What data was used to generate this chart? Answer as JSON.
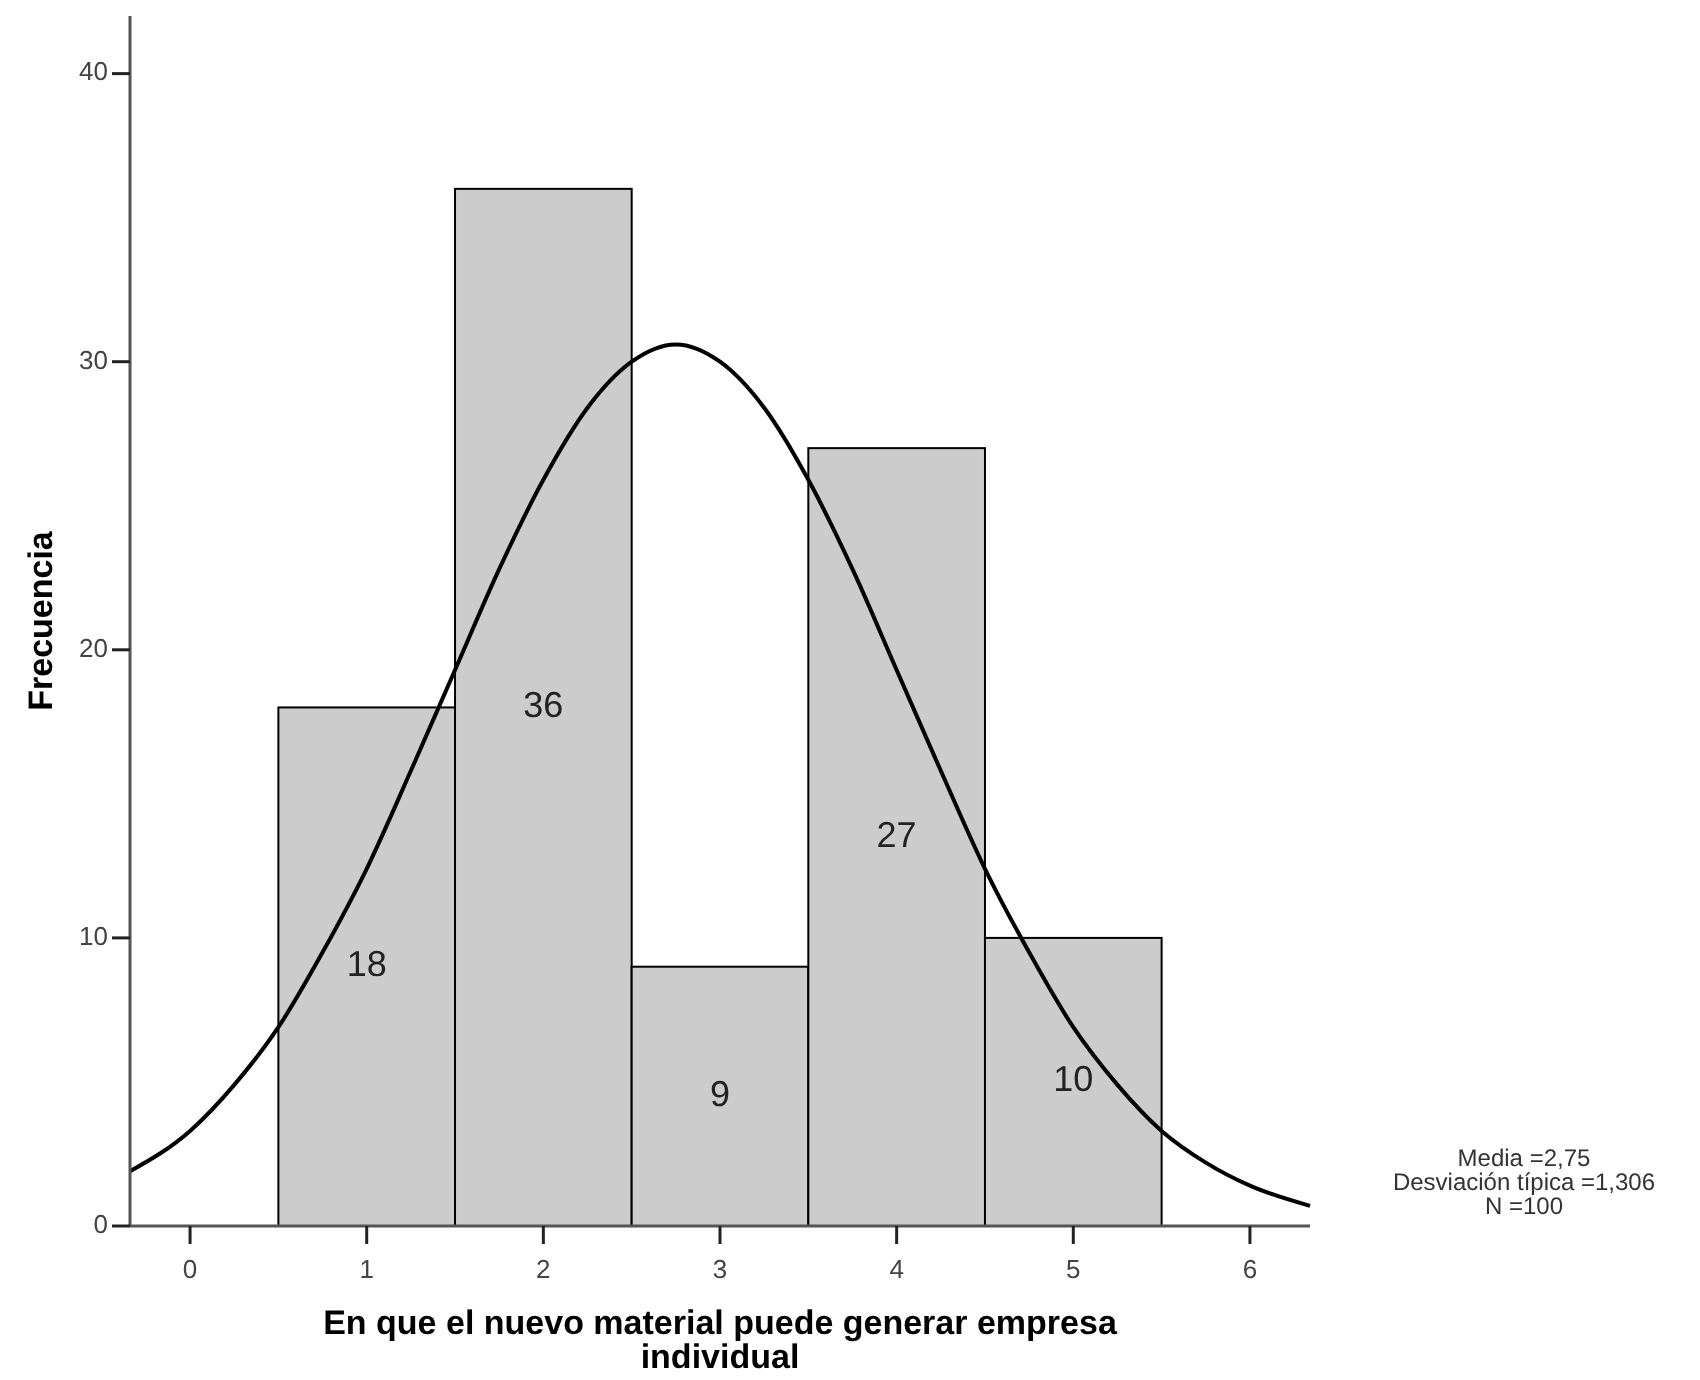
{
  "chart_data": {
    "type": "histogram",
    "xlabel": "En que el nuevo material puede generar empresa individual",
    "ylabel": "Frecuencia",
    "bins": [
      0.5,
      1.5,
      2.5,
      3.5,
      4.5,
      5.5
    ],
    "series": [
      {
        "color": "#cccccc",
        "values": [
          18,
          36,
          9,
          27,
          10
        ],
        "value_labels": [
          "18",
          "36",
          "9",
          "27",
          "10"
        ]
      },
      {
        "type": "line",
        "color": "#000000",
        "x": [
          -0.34,
          0,
          0.25,
          0.5,
          0.75,
          1,
          1.25,
          1.5,
          1.75,
          2,
          2.25,
          2.5,
          2.75,
          3,
          3.25,
          3.5,
          3.75,
          4,
          4.25,
          4.5,
          4.75,
          5,
          5.25,
          5.5,
          5.75,
          6,
          6.34
        ],
        "values": [
          1.9,
          3.3,
          4.9,
          6.9,
          9.5,
          12.4,
          15.8,
          19.3,
          22.8,
          25.9,
          28.4,
          30.0,
          30.6,
          30.0,
          28.4,
          25.9,
          22.8,
          19.3,
          15.8,
          12.4,
          9.5,
          6.9,
          4.9,
          3.3,
          2.2,
          1.4,
          0.7
        ]
      }
    ],
    "xlim": [
      -0.34,
      6.34
    ],
    "xticks": [
      0,
      1,
      2,
      3,
      4,
      5,
      6
    ],
    "ylim": [
      0,
      42
    ],
    "yticks": [
      0,
      10,
      20,
      30,
      40
    ],
    "annotations": [
      "Media =2,75",
      "Desviación típica =1,306",
      "N =100"
    ]
  }
}
